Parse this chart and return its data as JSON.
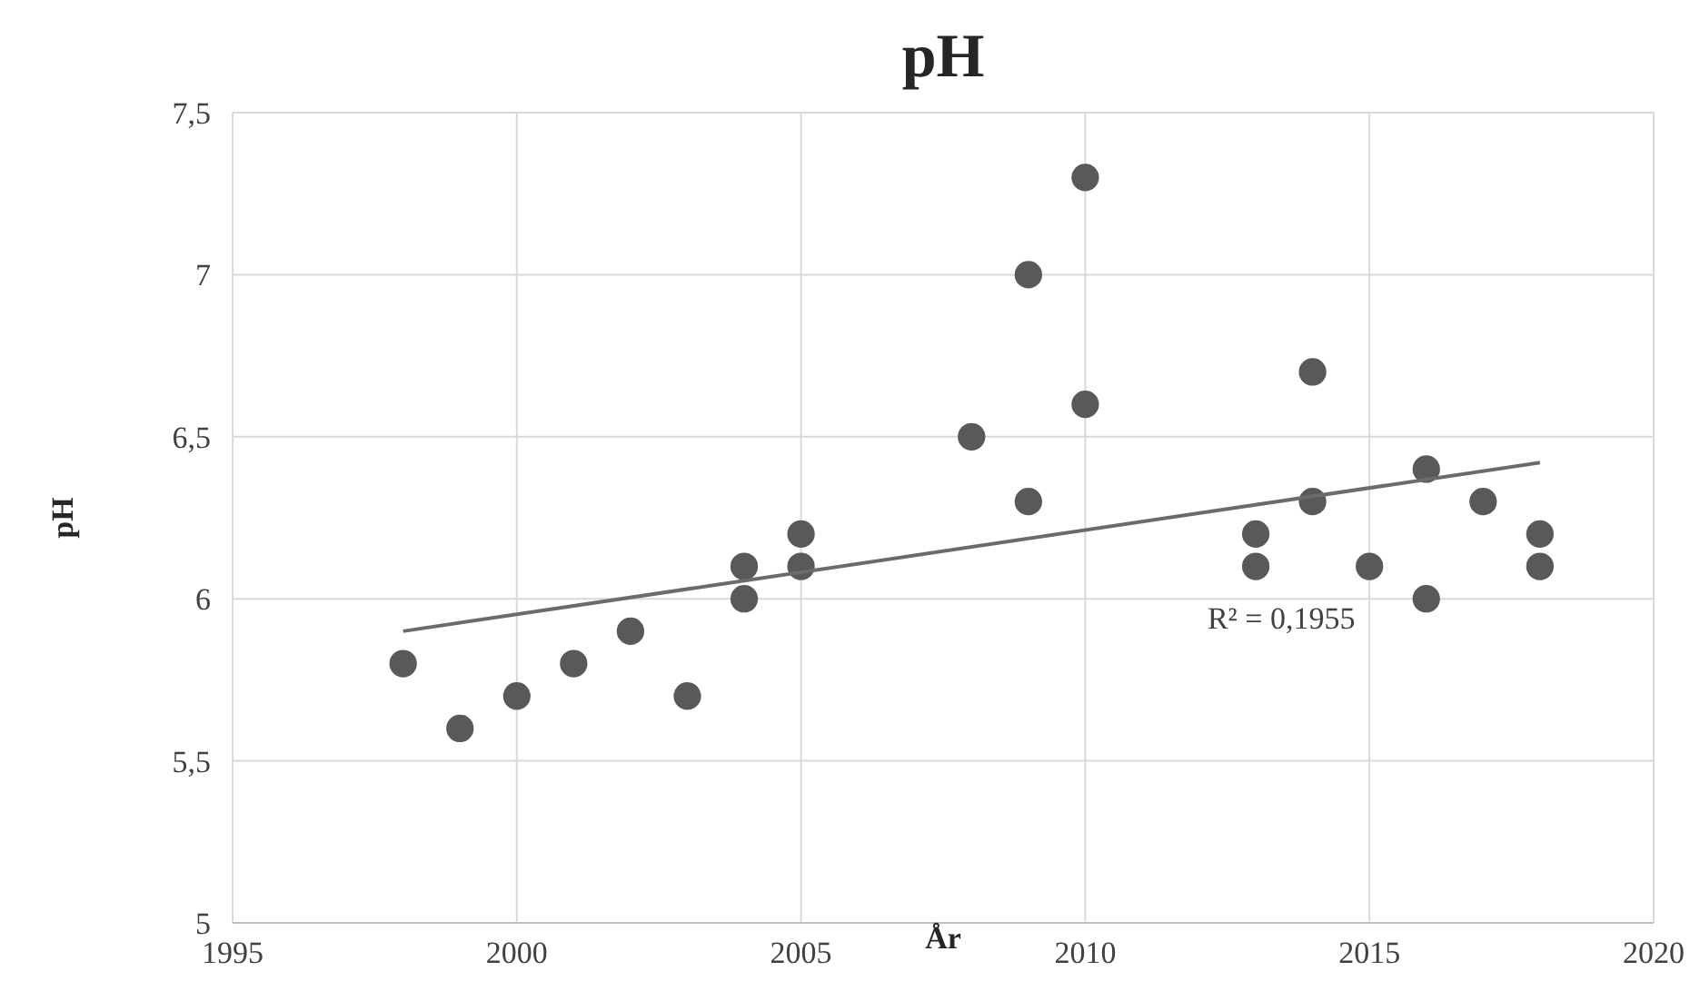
{
  "chart_data": {
    "type": "scatter",
    "title": "pH",
    "xlabel": "År",
    "ylabel": "pH",
    "xlim": [
      1995,
      2020
    ],
    "xticks": [
      1995,
      2000,
      2005,
      2010,
      2015,
      2020
    ],
    "ylim": [
      5,
      7.5
    ],
    "yticks": [
      5,
      {
        "value": 5.5,
        "label": "5,5"
      },
      6,
      {
        "value": 6.5,
        "label": "6,5"
      },
      7,
      {
        "value": 7.5,
        "label": "7,5"
      }
    ],
    "grid": true,
    "marker": "circle",
    "series": [
      {
        "color": "#595959",
        "x": [
          1998,
          1999,
          2000,
          2001,
          2002,
          2003,
          2004,
          2004,
          2005,
          2005,
          2008,
          2009,
          2009,
          2010,
          2010,
          2013,
          2013,
          2014,
          2014,
          2015,
          2016,
          2016,
          2017,
          2018,
          2018
        ],
        "values": [
          5.8,
          5.6,
          5.7,
          5.8,
          5.9,
          5.7,
          6.1,
          6.0,
          6.2,
          6.1,
          6.5,
          7.0,
          6.3,
          7.3,
          6.6,
          6.2,
          6.1,
          6.7,
          6.3,
          6.1,
          6.4,
          6.0,
          6.3,
          6.2,
          6.1
        ]
      },
      {
        "type": "line",
        "color": "#6b6b6b",
        "marker": "none",
        "x": [
          1998,
          2018
        ],
        "values": [
          5.9,
          6.42
        ]
      }
    ],
    "annotations": [
      "R² = 0,1955"
    ]
  }
}
